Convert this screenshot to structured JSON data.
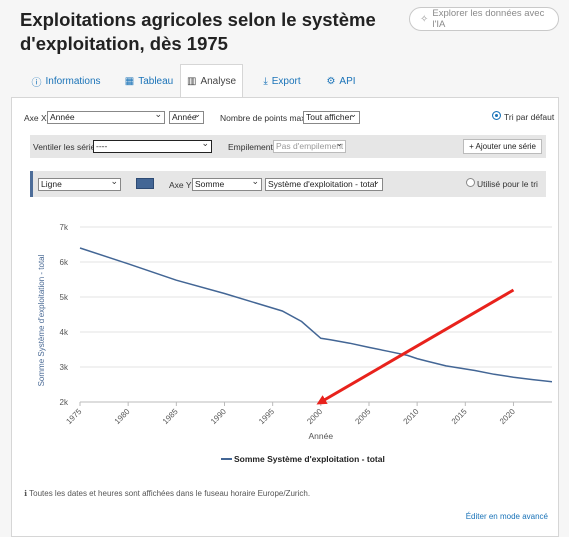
{
  "page": {
    "title": "Exploitations agricoles selon le système d'exploitation, dès 1975",
    "ai_button": "Explorer les données avec l'IA"
  },
  "tabs": [
    {
      "label": "Informations",
      "icon": "info-icon",
      "active": false
    },
    {
      "label": "Tableau",
      "icon": "table-icon",
      "active": false
    },
    {
      "label": "Analyse",
      "icon": "bar-chart-icon",
      "active": true
    },
    {
      "label": "Export",
      "icon": "download-icon",
      "active": false
    },
    {
      "label": "API",
      "icon": "gears-icon",
      "active": false
    }
  ],
  "controls": {
    "x_axis_label": "Axe X",
    "x_axis_value": "Année",
    "x_axis_unit": "Année",
    "max_points_label": "Nombre de points max.",
    "max_points_value": "Tout afficher",
    "default_sort_label": "Tri par défaut",
    "split_label": "Ventiler les séries",
    "split_value": "----",
    "stacking_label": "Empilement",
    "stacking_value": "Pas d'empilement",
    "add_series_button": "+ Ajouter une série",
    "series_type": "Ligne",
    "series_color": "#436695",
    "y_axis_label": "Axe Y",
    "y_aggregate": "Somme",
    "y_field": "Système d'exploitation - total",
    "use_for_sort_label": "Utilisé pour le tri"
  },
  "chart_data": {
    "type": "line",
    "xlabel": "Année",
    "ylabel": "Somme Système d'exploitation - total",
    "xlim": [
      1975,
      2024
    ],
    "ylim": [
      2000,
      7000
    ],
    "x_ticks": [
      1975,
      1980,
      1985,
      1990,
      1995,
      2000,
      2005,
      2010,
      2015,
      2020
    ],
    "y_ticks": [
      "2k",
      "3k",
      "4k",
      "5k",
      "6k",
      "7k"
    ],
    "y_tick_values": [
      2000,
      3000,
      4000,
      5000,
      6000,
      7000
    ],
    "grid": true,
    "legend_position": "bottom",
    "series": [
      {
        "name": "Somme Système d'exploitation - total",
        "color": "#436695",
        "x": [
          1975,
          1980,
          1985,
          1990,
          1996,
          1998,
          2000,
          2001,
          2003,
          2005,
          2007,
          2009,
          2010,
          2011,
          2013,
          2016,
          2018,
          2020,
          2022,
          2024
        ],
        "y": [
          6400,
          5950,
          5480,
          5100,
          4600,
          4300,
          3820,
          3780,
          3680,
          3560,
          3450,
          3330,
          3240,
          3170,
          3030,
          2900,
          2790,
          2710,
          2640,
          2580
        ]
      }
    ],
    "annotations": [
      {
        "type": "arrow",
        "color": "#e8221c",
        "from": [
          2020,
          5200
        ],
        "to": [
          2000,
          2000
        ]
      }
    ]
  },
  "footer": {
    "timezone_note": "Toutes les dates et heures sont affichées dans le fuseau horaire Europe/Zurich.",
    "advanced_edit": "Éditer en mode avancé"
  }
}
